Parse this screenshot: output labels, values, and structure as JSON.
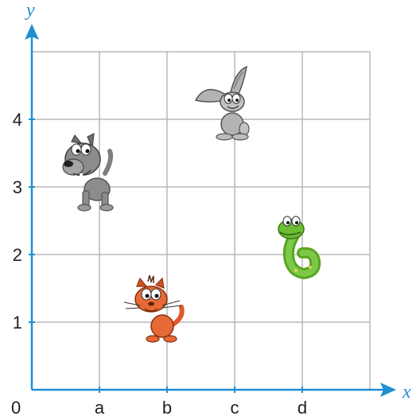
{
  "grid": {
    "x_labels": [
      "a",
      "b",
      "c",
      "d"
    ],
    "y_labels": [
      "1",
      "2",
      "3",
      "4"
    ],
    "origin_label": "0",
    "x_axis_name": "x",
    "y_axis_name": "y",
    "columns": 5,
    "rows": 5,
    "axis_color": "#1f8fd1",
    "grid_color": "#b8b8b8"
  },
  "animals": [
    {
      "name": "dog",
      "icon": "dog-icon",
      "x": 0.9,
      "y": 3.4,
      "color": "#7f7f7f"
    },
    {
      "name": "rabbit",
      "icon": "rabbit-icon",
      "x": 3.0,
      "y": 4.3,
      "color": "#a9a9a9"
    },
    {
      "name": "snake",
      "icon": "snake-icon",
      "x": 4.0,
      "y": 2.2,
      "color": "#69b52a"
    },
    {
      "name": "cat",
      "icon": "cat-icon",
      "x": 2.0,
      "y": 1.2,
      "color": "#e1592a"
    }
  ]
}
